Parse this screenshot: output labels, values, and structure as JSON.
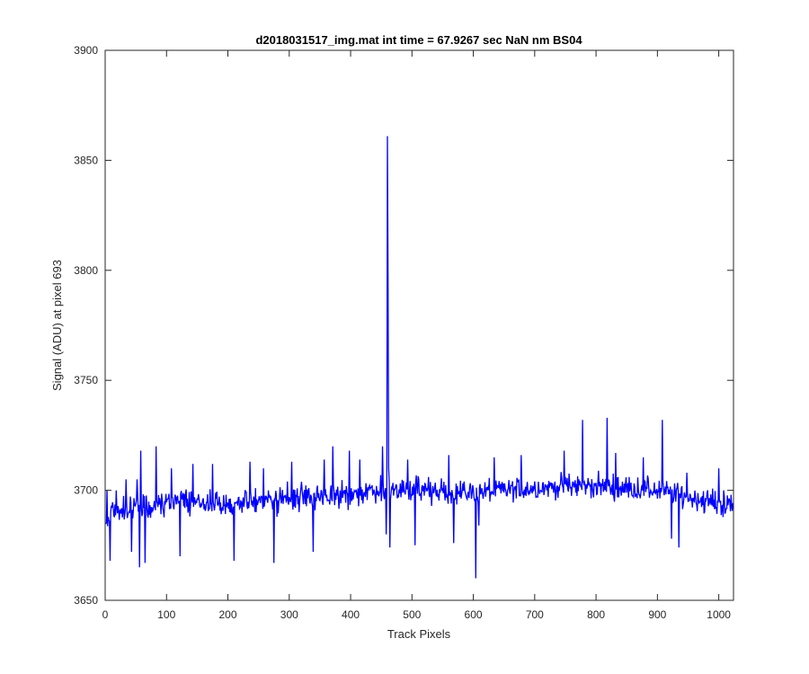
{
  "chart_data": {
    "type": "line",
    "title": "d2018031517_img.mat int time = 67.9267 sec  NaN nm BS04",
    "xlabel": "Track Pixels",
    "ylabel": "Signal (ADU) at pixel 693",
    "xlim": [
      0,
      1024
    ],
    "ylim": [
      3650,
      3900
    ],
    "xticks": [
      0,
      100,
      200,
      300,
      400,
      500,
      600,
      700,
      800,
      900,
      1000
    ],
    "yticks": [
      3650,
      3700,
      3750,
      3800,
      3850,
      3900
    ],
    "grid": false,
    "legend": "none",
    "series": [
      {
        "color": "#0000ff",
        "x_start": 1,
        "x_step": 1,
        "anchors": [
          [
            1,
            3686
          ],
          [
            10,
            3690
          ],
          [
            20,
            3690
          ],
          [
            40,
            3692
          ],
          [
            60,
            3693
          ],
          [
            80,
            3693
          ],
          [
            100,
            3694
          ],
          [
            140,
            3694
          ],
          [
            200,
            3694
          ],
          [
            260,
            3695
          ],
          [
            300,
            3696
          ],
          [
            350,
            3697
          ],
          [
            400,
            3698
          ],
          [
            440,
            3700
          ],
          [
            500,
            3700
          ],
          [
            560,
            3699
          ],
          [
            600,
            3699
          ],
          [
            650,
            3700
          ],
          [
            700,
            3701
          ],
          [
            750,
            3702
          ],
          [
            800,
            3702
          ],
          [
            850,
            3701
          ],
          [
            900,
            3700
          ],
          [
            950,
            3697
          ],
          [
            1000,
            3694
          ],
          [
            1024,
            3692
          ]
        ],
        "spikes": [
          [
            3,
            3700
          ],
          [
            8,
            3668
          ],
          [
            18,
            3700
          ],
          [
            34,
            3705
          ],
          [
            43,
            3672
          ],
          [
            52,
            3705
          ],
          [
            56,
            3665
          ],
          [
            58,
            3718
          ],
          [
            65,
            3667
          ],
          [
            83,
            3720
          ],
          [
            108,
            3710
          ],
          [
            122,
            3670
          ],
          [
            143,
            3712
          ],
          [
            175,
            3712
          ],
          [
            210,
            3668
          ],
          [
            236,
            3713
          ],
          [
            258,
            3710
          ],
          [
            275,
            3667
          ],
          [
            297,
            3704
          ],
          [
            304,
            3713
          ],
          [
            339,
            3672
          ],
          [
            357,
            3714
          ],
          [
            371,
            3720
          ],
          [
            398,
            3718
          ],
          [
            415,
            3714
          ],
          [
            452,
            3720
          ],
          [
            458,
            3680
          ],
          [
            460,
            3861
          ],
          [
            461,
            3798
          ],
          [
            462,
            3710
          ],
          [
            464,
            3674
          ],
          [
            493,
            3714
          ],
          [
            505,
            3675
          ],
          [
            560,
            3716
          ],
          [
            568,
            3676
          ],
          [
            604,
            3660
          ],
          [
            609,
            3684
          ],
          [
            634,
            3715
          ],
          [
            678,
            3716
          ],
          [
            748,
            3718
          ],
          [
            778,
            3732
          ],
          [
            818,
            3733
          ],
          [
            832,
            3717
          ],
          [
            877,
            3715
          ],
          [
            908,
            3732
          ],
          [
            923,
            3678
          ],
          [
            935,
            3674
          ],
          [
            948,
            3708
          ],
          [
            1000,
            3710
          ],
          [
            1008,
            3700
          ],
          [
            1020,
            3698
          ]
        ],
        "noise_amplitude": 8
      }
    ]
  }
}
